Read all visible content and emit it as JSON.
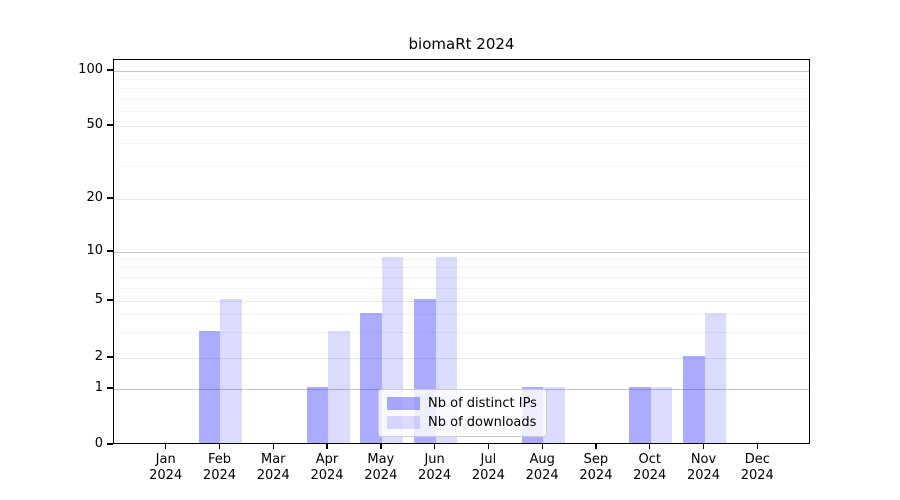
{
  "chart_data": {
    "type": "bar",
    "title": "biomaRt 2024",
    "categories": [
      {
        "month": "Jan",
        "year": "2024"
      },
      {
        "month": "Feb",
        "year": "2024"
      },
      {
        "month": "Mar",
        "year": "2024"
      },
      {
        "month": "Apr",
        "year": "2024"
      },
      {
        "month": "May",
        "year": "2024"
      },
      {
        "month": "Jun",
        "year": "2024"
      },
      {
        "month": "Jul",
        "year": "2024"
      },
      {
        "month": "Aug",
        "year": "2024"
      },
      {
        "month": "Sep",
        "year": "2024"
      },
      {
        "month": "Oct",
        "year": "2024"
      },
      {
        "month": "Nov",
        "year": "2024"
      },
      {
        "month": "Dec",
        "year": "2024"
      }
    ],
    "series": [
      {
        "name": "Nb of distinct IPs",
        "color_hex": "#a8a8fa",
        "fill": "rgba(0,0,255,0.33)",
        "values": [
          0,
          3,
          0,
          1,
          4,
          5,
          0,
          1,
          0,
          1,
          2,
          0
        ]
      },
      {
        "name": "Nb of downloads",
        "color_hex": "#dbdbfd",
        "fill": "rgba(0,0,255,0.14)",
        "values": [
          0,
          5,
          0,
          3,
          9,
          9,
          0,
          1,
          0,
          1,
          4,
          0
        ]
      }
    ],
    "yaxis": {
      "ticks": [
        100,
        50,
        20,
        10,
        5,
        2,
        1,
        0
      ],
      "decade_gridlines": [
        100,
        10,
        1
      ],
      "minor_gridlines": [
        90,
        80,
        70,
        60,
        40,
        30,
        9,
        8,
        7,
        6,
        4,
        3
      ],
      "scale": "log-like",
      "range": [
        0,
        100
      ]
    },
    "legend": {
      "position": "lower center"
    },
    "grid": "horizontal"
  }
}
